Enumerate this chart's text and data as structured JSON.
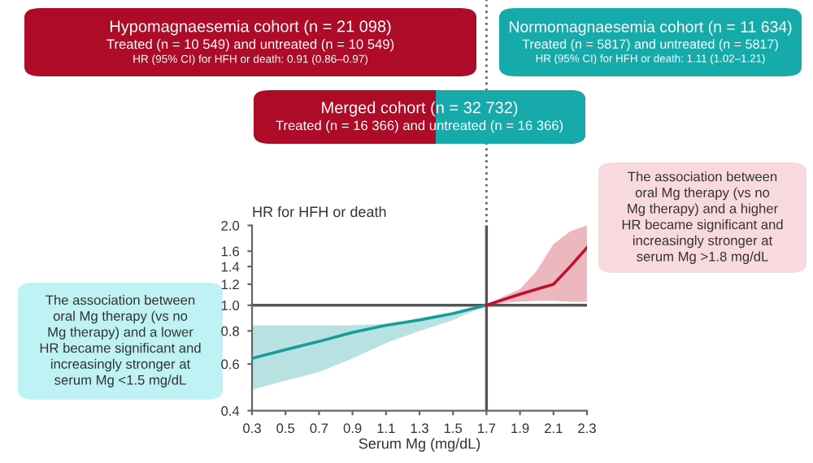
{
  "chart_data": {
    "type": "line",
    "ylabel": "HR for HFH or death",
    "xlabel": "Serum Mg (mg/dL)",
    "series": [
      {
        "color": "#159c9c",
        "x": [
          0.3,
          0.5,
          0.7,
          0.9,
          1.1,
          1.3,
          1.5,
          1.7
        ],
        "values": [
          0.63,
          0.68,
          0.73,
          0.79,
          0.84,
          0.88,
          0.93,
          1.0
        ],
        "lower": [
          0.48,
          0.52,
          0.56,
          0.63,
          0.72,
          0.8,
          0.88,
          1.0
        ],
        "upper": [
          0.84,
          0.84,
          0.84,
          0.84,
          0.85,
          0.88,
          0.94,
          1.0
        ]
      },
      {
        "color": "#c0102a",
        "x": [
          1.7,
          1.8,
          1.9,
          2.0,
          2.1,
          2.2,
          2.3
        ],
        "values": [
          1.0,
          1.05,
          1.1,
          1.15,
          1.2,
          1.4,
          1.65
        ],
        "lower": [
          1.0,
          1.02,
          1.03,
          1.04,
          1.04,
          1.03,
          1.03
        ],
        "upper": [
          1.0,
          1.08,
          1.15,
          1.35,
          1.7,
          1.9,
          2.0
        ]
      }
    ],
    "xlim": [
      0.3,
      2.3
    ],
    "xticks": [
      0.3,
      0.5,
      0.7,
      0.9,
      1.1,
      1.3,
      1.5,
      1.7,
      1.9,
      2.1,
      2.3
    ],
    "ylim": [
      0.4,
      2.0
    ],
    "log": true,
    "yticks": [
      0.4,
      0.6,
      0.8,
      {
        "value": 1.0,
        "label": "1.0"
      },
      1.2,
      1.4,
      1.6,
      {
        "value": 2.0,
        "label": "2.0"
      }
    ],
    "ref_lines": [
      {
        "axis": "x",
        "value": 1.7,
        "color": "#555555"
      },
      {
        "axis": "y",
        "value": 1.0,
        "color": "#555555"
      }
    ],
    "grid": false,
    "legend": false,
    "annotations": [
      "Hypomagnaesemia cohort (n = 21 098)\nTreated (n = 10 549) and untreated (n = 10 549)\nHR (95% CI) for HFH or death: 0.91 (0.86–0.97)",
      "Normomagnaesemia cohort (n = 11 634)\nTreated (n = 5817) and untreated (n = 5817)\nHR (95% CI) for HFH or death: 1.11 (1.02–1.21)",
      "Merged cohort (n = 32 732)\nTreated (n = 16 366) and untreated (n = 16 366)",
      "The association between\noral Mg therapy (vs no\nMg therapy) and a lower\nHR became significant and\nincreasingly stronger at\nserum Mg <1.5 mg/dL",
      "The association between\noral Mg therapy (vs no\nMg therapy) and a higher\nHR became significant and\nincreasingly stronger at\nserum Mg >1.8 mg/dL"
    ]
  }
}
